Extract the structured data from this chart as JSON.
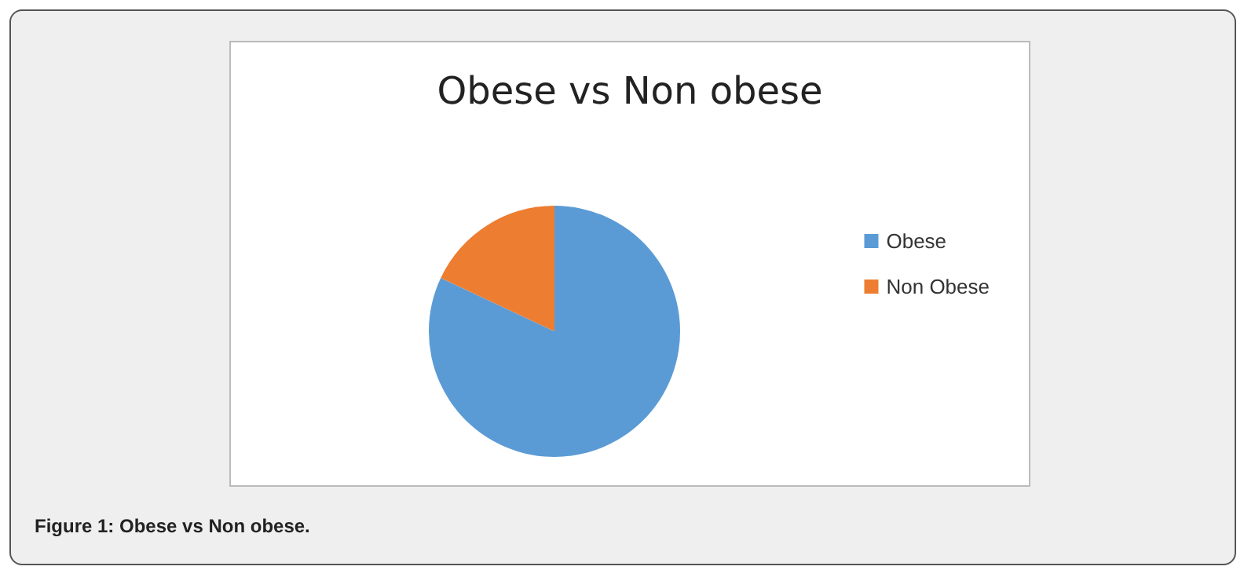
{
  "chart_data": {
    "type": "pie",
    "title": "Obese vs Non obese",
    "categories": [
      "Obese",
      "Non Obese"
    ],
    "values": [
      82,
      18
    ],
    "colors": [
      "#5b9bd5",
      "#ed7d31"
    ],
    "legend": "right",
    "annotations": [
      "Figure 1: Obese vs Non obese."
    ]
  }
}
